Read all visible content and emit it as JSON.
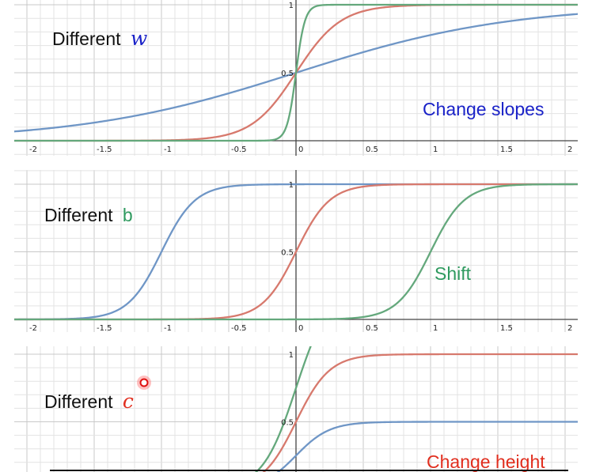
{
  "colors": {
    "blue": "#6f96c6",
    "red": "#d7796d",
    "green": "#64a87c",
    "text_blue": "#1a22c8",
    "text_green": "#2f9a5f",
    "text_red": "#e12e1e",
    "grid_minor": "#e3e3e3",
    "grid_major": "#c8c8c8",
    "axis": "#444444"
  },
  "chart_data": [
    {
      "type": "line",
      "title_prefix": "Different",
      "title_var": "w",
      "annotation": "Change slopes",
      "x_ticks": [
        "-2",
        "-1.5",
        "-1",
        "-0.5",
        "0",
        "0.5",
        "1",
        "1.5",
        "2"
      ],
      "y_ticks": [
        "0.5",
        "1"
      ],
      "xlim": [
        -2.1,
        2.1
      ],
      "ylim": [
        0,
        1
      ],
      "series": [
        {
          "color": "blue",
          "function": "sigmoid",
          "w": 1.25,
          "b": 0,
          "c": 1
        },
        {
          "color": "red",
          "function": "sigmoid",
          "w": 6,
          "b": 0,
          "c": 1
        },
        {
          "color": "green",
          "function": "sigmoid",
          "w": 30,
          "b": 0,
          "c": 1
        }
      ]
    },
    {
      "type": "line",
      "title_prefix": "Different",
      "title_var": "b",
      "annotation": "Shift",
      "x_ticks": [
        "-2",
        "-1.5",
        "-1",
        "-0.5",
        "0",
        "0.5",
        "1",
        "1.5",
        "2"
      ],
      "y_ticks": [
        "0.5",
        "1"
      ],
      "xlim": [
        -2.1,
        2.1
      ],
      "ylim": [
        0,
        1
      ],
      "series": [
        {
          "color": "blue",
          "function": "sigmoid",
          "w": 8,
          "b": 8,
          "c": 1
        },
        {
          "color": "red",
          "function": "sigmoid",
          "w": 8,
          "b": 0,
          "c": 1
        },
        {
          "color": "green",
          "function": "sigmoid",
          "w": 8,
          "b": -8,
          "c": 1
        }
      ]
    },
    {
      "type": "line",
      "title_prefix": "Different",
      "title_var": "c",
      "annotation": "Change height",
      "x_ticks": [],
      "y_ticks": [
        "0.5",
        "1"
      ],
      "xlim": [
        -2.1,
        2.1
      ],
      "ylim": [
        0,
        1
      ],
      "series": [
        {
          "color": "blue",
          "function": "sigmoid",
          "w": 8,
          "b": 0,
          "c": 0.5
        },
        {
          "color": "red",
          "function": "sigmoid",
          "w": 8,
          "b": 0,
          "c": 1
        },
        {
          "color": "green",
          "function": "sigmoid",
          "w": 8,
          "b": 0,
          "c": 1.5
        }
      ]
    }
  ]
}
